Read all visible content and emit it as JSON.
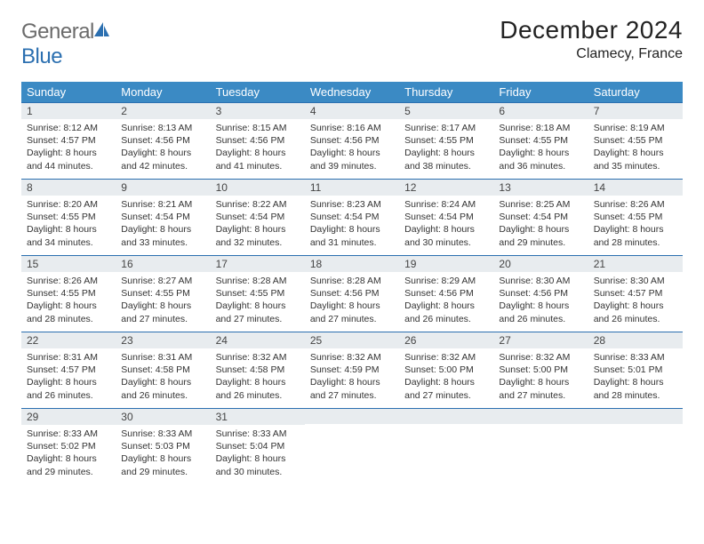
{
  "logo": {
    "word1": "General",
    "word2": "Blue"
  },
  "title": "December 2024",
  "location": "Clamecy, France",
  "colors": {
    "header_bg": "#3b8ac4",
    "header_text": "#ffffff",
    "rule": "#2b6fb0",
    "daynum_bg": "#e8ecef",
    "logo_gray": "#6b6b6b",
    "logo_blue": "#2b6fb0",
    "body_text": "#333333"
  },
  "typography": {
    "title_fontsize": 28,
    "location_fontsize": 16,
    "weekday_fontsize": 13,
    "daynum_fontsize": 12,
    "body_fontsize": 10.5
  },
  "weekdays": [
    "Sunday",
    "Monday",
    "Tuesday",
    "Wednesday",
    "Thursday",
    "Friday",
    "Saturday"
  ],
  "weeks": [
    [
      {
        "n": "1",
        "sunrise": "8:12 AM",
        "sunset": "4:57 PM",
        "dl": "8 hours and 44 minutes."
      },
      {
        "n": "2",
        "sunrise": "8:13 AM",
        "sunset": "4:56 PM",
        "dl": "8 hours and 42 minutes."
      },
      {
        "n": "3",
        "sunrise": "8:15 AM",
        "sunset": "4:56 PM",
        "dl": "8 hours and 41 minutes."
      },
      {
        "n": "4",
        "sunrise": "8:16 AM",
        "sunset": "4:56 PM",
        "dl": "8 hours and 39 minutes."
      },
      {
        "n": "5",
        "sunrise": "8:17 AM",
        "sunset": "4:55 PM",
        "dl": "8 hours and 38 minutes."
      },
      {
        "n": "6",
        "sunrise": "8:18 AM",
        "sunset": "4:55 PM",
        "dl": "8 hours and 36 minutes."
      },
      {
        "n": "7",
        "sunrise": "8:19 AM",
        "sunset": "4:55 PM",
        "dl": "8 hours and 35 minutes."
      }
    ],
    [
      {
        "n": "8",
        "sunrise": "8:20 AM",
        "sunset": "4:55 PM",
        "dl": "8 hours and 34 minutes."
      },
      {
        "n": "9",
        "sunrise": "8:21 AM",
        "sunset": "4:54 PM",
        "dl": "8 hours and 33 minutes."
      },
      {
        "n": "10",
        "sunrise": "8:22 AM",
        "sunset": "4:54 PM",
        "dl": "8 hours and 32 minutes."
      },
      {
        "n": "11",
        "sunrise": "8:23 AM",
        "sunset": "4:54 PM",
        "dl": "8 hours and 31 minutes."
      },
      {
        "n": "12",
        "sunrise": "8:24 AM",
        "sunset": "4:54 PM",
        "dl": "8 hours and 30 minutes."
      },
      {
        "n": "13",
        "sunrise": "8:25 AM",
        "sunset": "4:54 PM",
        "dl": "8 hours and 29 minutes."
      },
      {
        "n": "14",
        "sunrise": "8:26 AM",
        "sunset": "4:55 PM",
        "dl": "8 hours and 28 minutes."
      }
    ],
    [
      {
        "n": "15",
        "sunrise": "8:26 AM",
        "sunset": "4:55 PM",
        "dl": "8 hours and 28 minutes."
      },
      {
        "n": "16",
        "sunrise": "8:27 AM",
        "sunset": "4:55 PM",
        "dl": "8 hours and 27 minutes."
      },
      {
        "n": "17",
        "sunrise": "8:28 AM",
        "sunset": "4:55 PM",
        "dl": "8 hours and 27 minutes."
      },
      {
        "n": "18",
        "sunrise": "8:28 AM",
        "sunset": "4:56 PM",
        "dl": "8 hours and 27 minutes."
      },
      {
        "n": "19",
        "sunrise": "8:29 AM",
        "sunset": "4:56 PM",
        "dl": "8 hours and 26 minutes."
      },
      {
        "n": "20",
        "sunrise": "8:30 AM",
        "sunset": "4:56 PM",
        "dl": "8 hours and 26 minutes."
      },
      {
        "n": "21",
        "sunrise": "8:30 AM",
        "sunset": "4:57 PM",
        "dl": "8 hours and 26 minutes."
      }
    ],
    [
      {
        "n": "22",
        "sunrise": "8:31 AM",
        "sunset": "4:57 PM",
        "dl": "8 hours and 26 minutes."
      },
      {
        "n": "23",
        "sunrise": "8:31 AM",
        "sunset": "4:58 PM",
        "dl": "8 hours and 26 minutes."
      },
      {
        "n": "24",
        "sunrise": "8:32 AM",
        "sunset": "4:58 PM",
        "dl": "8 hours and 26 minutes."
      },
      {
        "n": "25",
        "sunrise": "8:32 AM",
        "sunset": "4:59 PM",
        "dl": "8 hours and 27 minutes."
      },
      {
        "n": "26",
        "sunrise": "8:32 AM",
        "sunset": "5:00 PM",
        "dl": "8 hours and 27 minutes."
      },
      {
        "n": "27",
        "sunrise": "8:32 AM",
        "sunset": "5:00 PM",
        "dl": "8 hours and 27 minutes."
      },
      {
        "n": "28",
        "sunrise": "8:33 AM",
        "sunset": "5:01 PM",
        "dl": "8 hours and 28 minutes."
      }
    ],
    [
      {
        "n": "29",
        "sunrise": "8:33 AM",
        "sunset": "5:02 PM",
        "dl": "8 hours and 29 minutes."
      },
      {
        "n": "30",
        "sunrise": "8:33 AM",
        "sunset": "5:03 PM",
        "dl": "8 hours and 29 minutes."
      },
      {
        "n": "31",
        "sunrise": "8:33 AM",
        "sunset": "5:04 PM",
        "dl": "8 hours and 30 minutes."
      },
      null,
      null,
      null,
      null
    ]
  ],
  "labels": {
    "sunrise": "Sunrise:",
    "sunset": "Sunset:",
    "daylight": "Daylight:"
  }
}
